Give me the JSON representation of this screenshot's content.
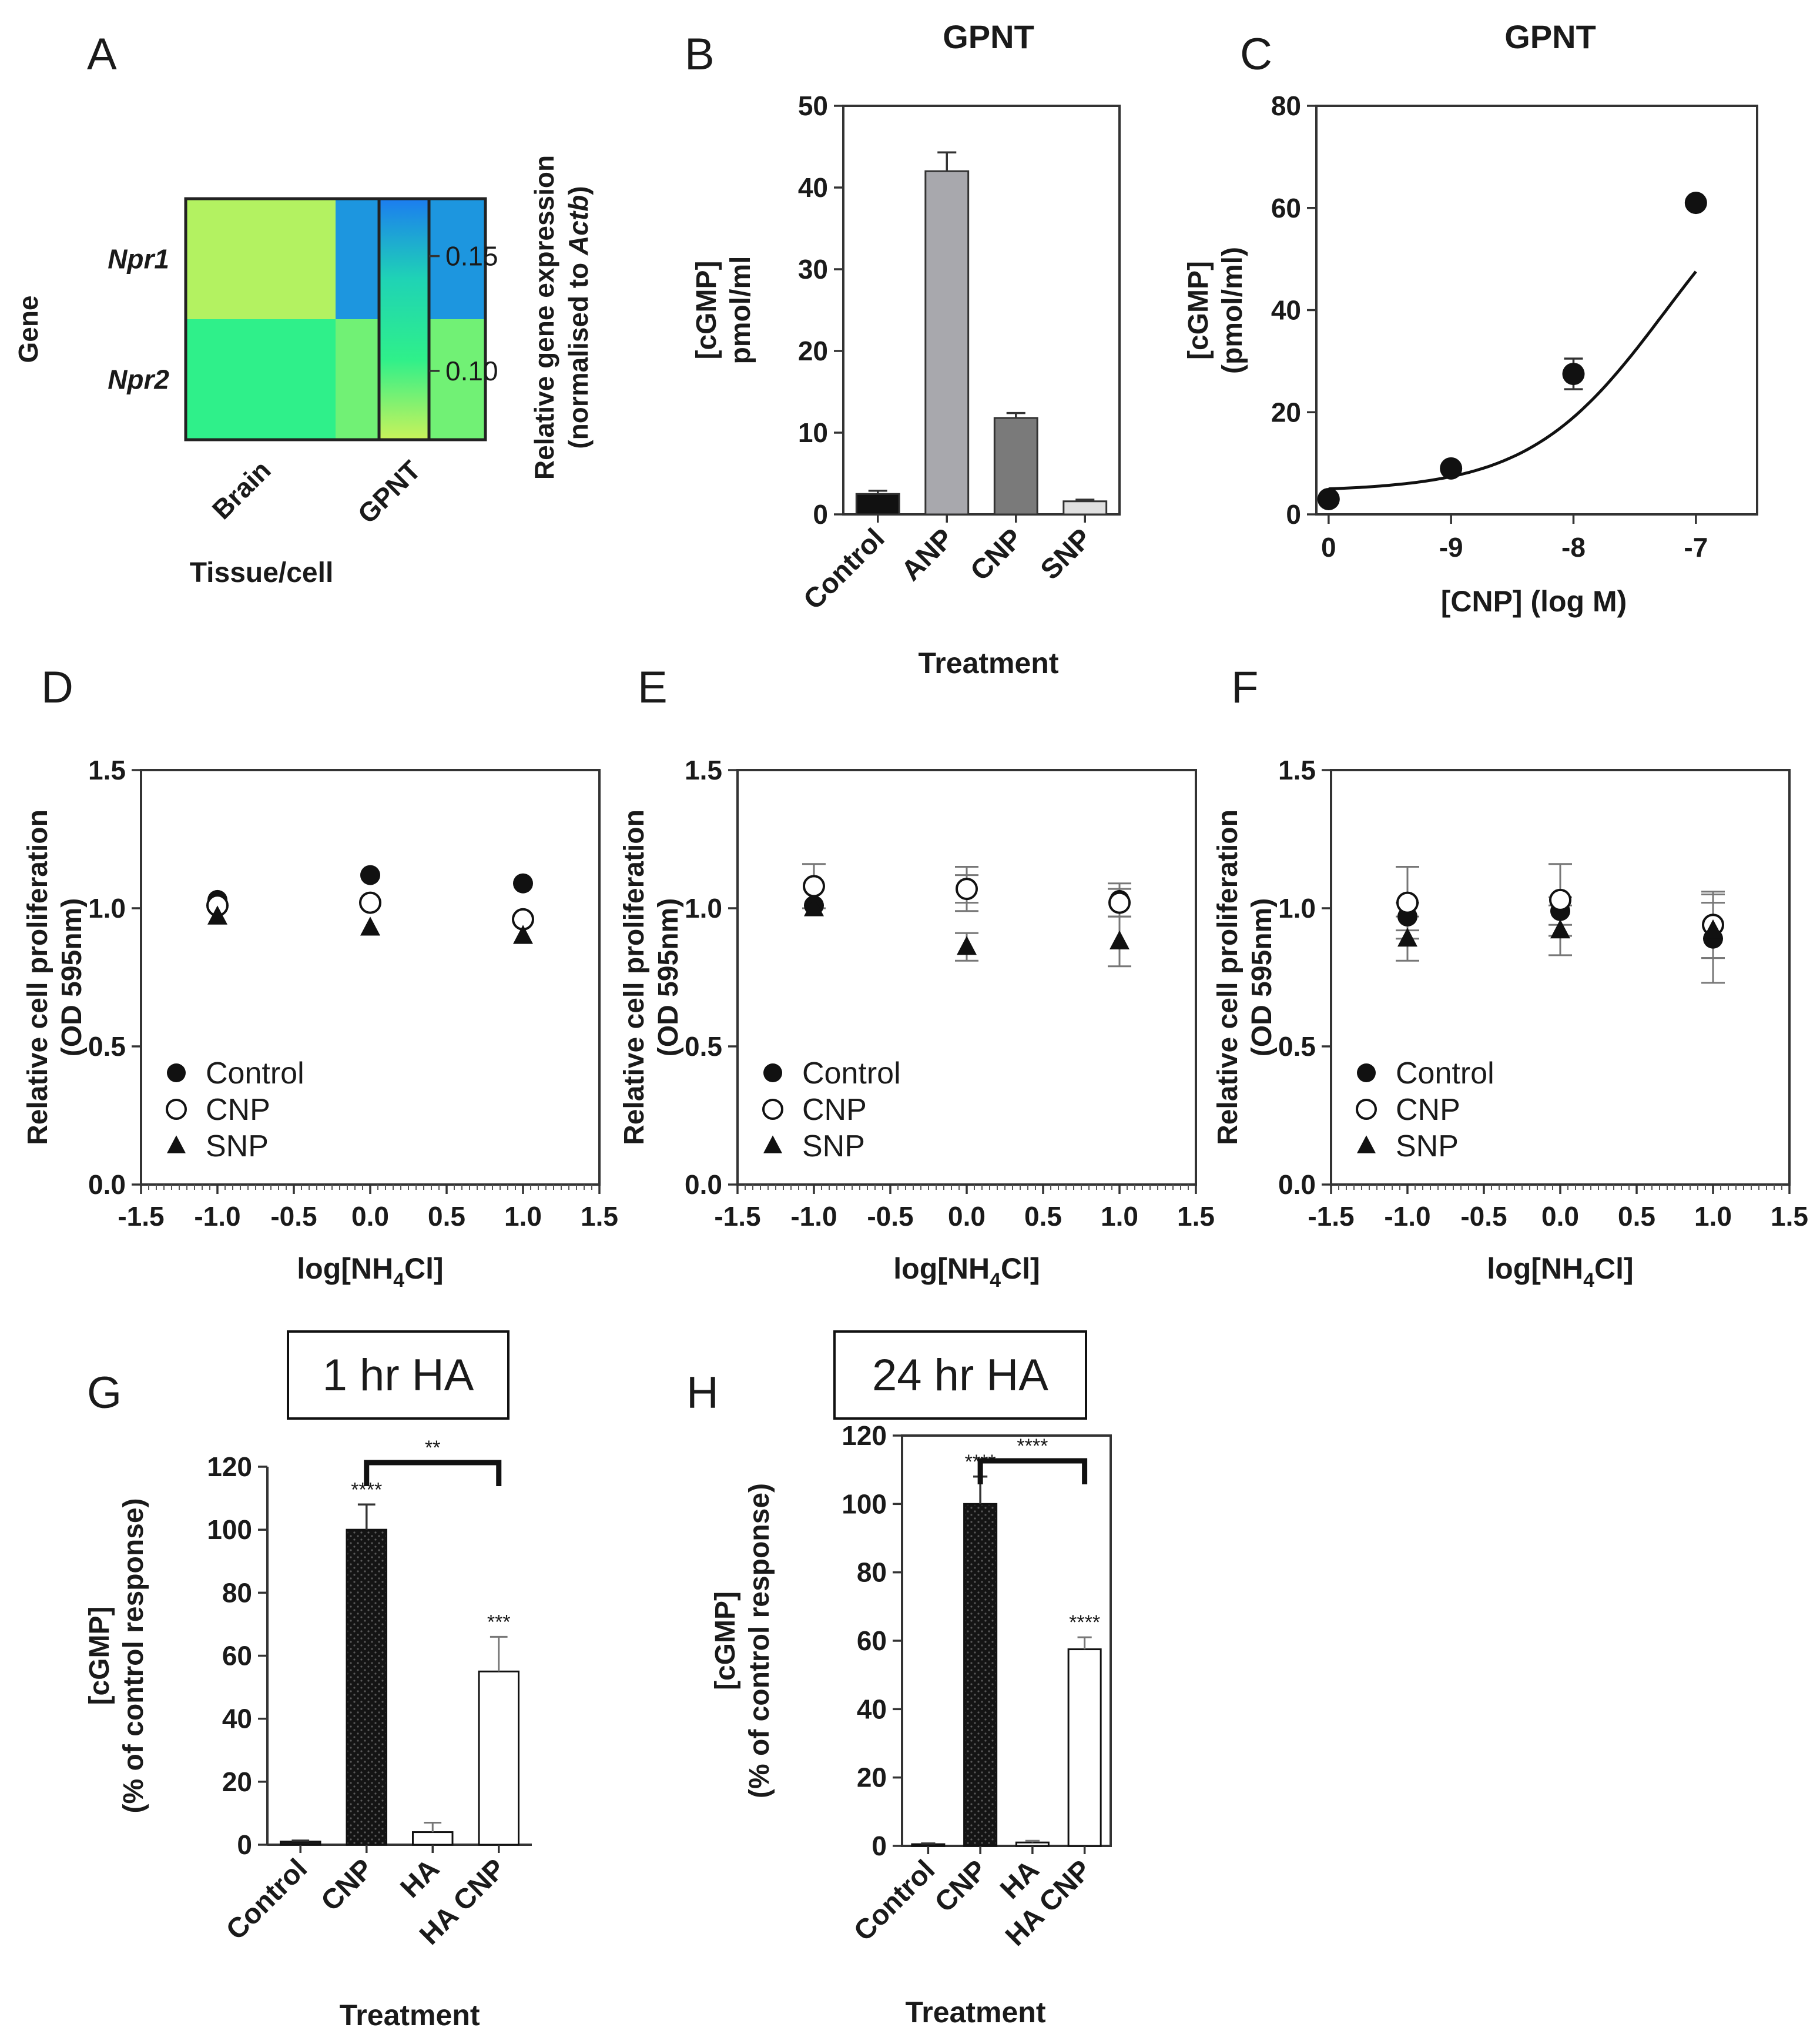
{
  "chart_data": [
    {
      "panel": "A",
      "type": "heatmap",
      "ylabel": "Gene",
      "xlabel": "Tissue/cell",
      "rows": [
        "Npr1",
        "Npr2"
      ],
      "columns": [
        "Brain",
        "GPNT"
      ],
      "values": [
        [
          0.075,
          0.165
        ],
        [
          0.105,
          0.09
        ]
      ],
      "colorbar": {
        "label_line1": "Relative gene expression",
        "label_line2_prefix": "(normalised to ",
        "label_line2_italic": "Actb",
        "label_line2_suffix": ")",
        "ticks": [
          "0.15",
          "0.10"
        ],
        "tick_values": [
          0.15,
          0.1
        ],
        "range": [
          0.07,
          0.175
        ],
        "colors": [
          "#c9f25a",
          "#2ff08a",
          "#1fd3b5",
          "#1c7df0"
        ]
      }
    },
    {
      "panel": "B",
      "type": "bar",
      "title": "GPNT",
      "ylabel_line1": "[cGMP]",
      "ylabel_line2": "pmol/ml",
      "xlabel": "Treatment",
      "categories": [
        "Control",
        "ANP",
        "CNP",
        "SNP"
      ],
      "values": [
        2.5,
        42,
        11.8,
        1.6
      ],
      "errors": [
        0.4,
        2.3,
        0.6,
        0.2
      ],
      "colors": [
        "#111111",
        "#a8a8ad",
        "#7a7a7a",
        "#e0e0e0"
      ],
      "ylim": [
        0,
        50
      ],
      "yticks": [
        "0",
        "10",
        "20",
        "30",
        "40",
        "50"
      ]
    },
    {
      "panel": "C",
      "type": "line",
      "title": "GPNT",
      "ylabel_line1": "[cGMP]",
      "ylabel_line2": "(pmol/ml)",
      "xlabel": "[CNP] (log M)",
      "x_positions": [
        0,
        1,
        2,
        3
      ],
      "x_ticklabels": [
        "0",
        "-9",
        "-8",
        "-7"
      ],
      "values": [
        3,
        9,
        27.5,
        61
      ],
      "errors": [
        0.4,
        0.6,
        3,
        0.8
      ],
      "fit_curve": {
        "bottom": 4.5,
        "top": 75,
        "midpoint": 2.75,
        "slope": 1.8
      },
      "ylim": [
        0,
        80
      ],
      "yticks": [
        "0",
        "20",
        "40",
        "60",
        "80"
      ]
    },
    {
      "panel": "D",
      "type": "scatter",
      "ylabel_line1": "Relative cell proliferation",
      "ylabel_line2": "(OD 595nm)",
      "xlabel_main": "log[NH",
      "xlabel_sub": "4",
      "xlabel_end": "Cl]",
      "xlim": [
        -1.5,
        1.5
      ],
      "ylim": [
        0,
        1.5
      ],
      "xticks": [
        "-1.5",
        "-1.0",
        "-0.5",
        "0.0",
        "0.5",
        "1.0",
        "1.5"
      ],
      "yticks": [
        "0.0",
        "0.5",
        "1.0",
        "1.5"
      ],
      "x": [
        -1.0,
        0.0,
        1.0
      ],
      "series": [
        {
          "name": "Control",
          "marker": "filled-circle",
          "values": [
            1.03,
            1.12,
            1.09
          ],
          "errors": [
            0.01,
            0.01,
            0.01
          ]
        },
        {
          "name": "CNP",
          "marker": "open-circle",
          "values": [
            1.01,
            1.02,
            0.96
          ],
          "errors": [
            0.01,
            0.01,
            0.01
          ]
        },
        {
          "name": "SNP",
          "marker": "filled-triangle",
          "values": [
            0.97,
            0.93,
            0.9
          ],
          "errors": [
            0.01,
            0.01,
            0.01
          ]
        }
      ]
    },
    {
      "panel": "E",
      "type": "scatter",
      "ylabel_line1": "Relative cell proliferation",
      "ylabel_line2": "(OD 595nm)",
      "xlabel_main": "log[NH",
      "xlabel_sub": "4",
      "xlabel_end": "Cl]",
      "xlim": [
        -1.5,
        1.5
      ],
      "ylim": [
        0,
        1.5
      ],
      "xticks": [
        "-1.5",
        "-1.0",
        "-0.5",
        "0.0",
        "0.5",
        "1.0",
        "1.5"
      ],
      "yticks": [
        "0.0",
        "0.5",
        "1.0",
        "1.5"
      ],
      "x": [
        -1.0,
        0.0,
        1.0
      ],
      "series": [
        {
          "name": "Control",
          "marker": "filled-circle",
          "values": [
            1.01,
            1.07,
            1.03
          ],
          "errors": [
            0.02,
            0.05,
            0.06
          ]
        },
        {
          "name": "CNP",
          "marker": "open-circle",
          "values": [
            1.08,
            1.07,
            1.02
          ],
          "errors": [
            0.08,
            0.08,
            0.05
          ]
        },
        {
          "name": "SNP",
          "marker": "filled-triangle",
          "values": [
            1.0,
            0.86,
            0.88
          ],
          "errors": [
            0.02,
            0.05,
            0.09
          ]
        }
      ]
    },
    {
      "panel": "F",
      "type": "scatter",
      "ylabel_line1": "Relative cell proliferation",
      "ylabel_line2": "(OD 595nm)",
      "xlabel_main": "log[NH",
      "xlabel_sub": "4",
      "xlabel_end": "Cl]",
      "xlim": [
        -1.5,
        1.5
      ],
      "ylim": [
        0,
        1.5
      ],
      "xticks": [
        "-1.5",
        "-1.0",
        "-0.5",
        "0.0",
        "0.5",
        "1.0",
        "1.5"
      ],
      "yticks": [
        "0.0",
        "0.5",
        "1.0",
        "1.5"
      ],
      "x": [
        -1.0,
        0.0,
        1.0
      ],
      "series": [
        {
          "name": "Control",
          "marker": "filled-circle",
          "values": [
            0.97,
            0.99,
            0.89
          ],
          "errors": [
            0.05,
            0.05,
            0.16
          ]
        },
        {
          "name": "CNP",
          "marker": "open-circle",
          "values": [
            1.02,
            1.03,
            0.94
          ],
          "errors": [
            0.13,
            0.13,
            0.12
          ]
        },
        {
          "name": "SNP",
          "marker": "filled-triangle",
          "values": [
            0.89,
            0.92,
            0.92
          ],
          "errors": [
            0.08,
            0.09,
            0.1
          ]
        }
      ]
    },
    {
      "panel": "G",
      "type": "bar",
      "title": "1 hr HA",
      "ylabel_line1": "[cGMP]",
      "ylabel_line2": "(% of control response)",
      "xlabel": "Treatment",
      "categories": [
        "Control",
        "CNP",
        "HA",
        "HA CNP"
      ],
      "values": [
        1,
        100,
        4,
        55
      ],
      "errors": [
        0.3,
        8,
        3,
        11
      ],
      "fills": [
        "#1a1a1a",
        "#111111",
        "#ffffff",
        "#ffffff"
      ],
      "stars": [
        "",
        "****",
        "",
        "***"
      ],
      "comparison": {
        "from": 1,
        "to": 3,
        "label": "**"
      },
      "ylim": [
        0,
        120
      ],
      "yticks": [
        "0",
        "20",
        "40",
        "60",
        "80",
        "100",
        "120"
      ]
    },
    {
      "panel": "H",
      "type": "bar",
      "title": "24 hr HA",
      "ylabel_line1": "[cGMP]",
      "ylabel_line2": "(% of control response)",
      "xlabel": "Treatment",
      "categories": [
        "Control",
        "CNP",
        "HA",
        "HA CNP"
      ],
      "values": [
        0.5,
        100,
        1,
        57.5
      ],
      "errors": [
        0.2,
        8,
        0.5,
        3.5
      ],
      "fills": [
        "#1a1a1a",
        "#111111",
        "#ffffff",
        "#ffffff"
      ],
      "stars": [
        "",
        "****",
        "",
        "****"
      ],
      "comparison": {
        "from": 1,
        "to": 3,
        "label": "****"
      },
      "ylim": [
        0,
        120
      ],
      "yticks": [
        "0",
        "20",
        "40",
        "60",
        "80",
        "100",
        "120"
      ]
    }
  ]
}
